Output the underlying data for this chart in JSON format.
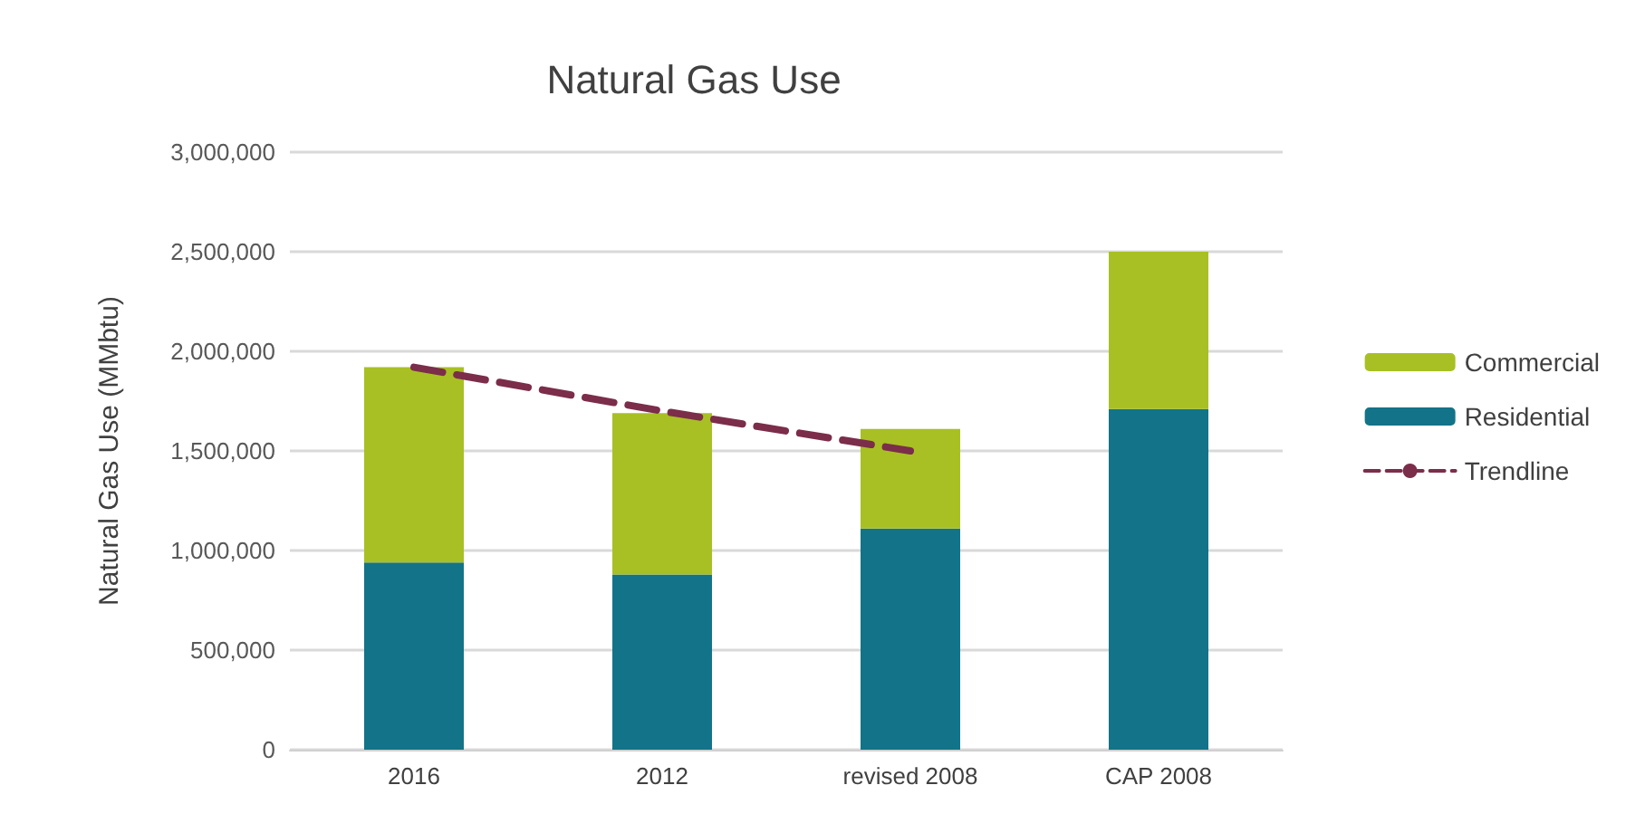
{
  "chart_data": {
    "type": "bar",
    "title": "Natural Gas Use",
    "ylabel": "Natural Gas Use (MMbtu)",
    "categories": [
      "2016",
      "2012",
      "revised 2008",
      "CAP 2008"
    ],
    "stacked": true,
    "series": [
      {
        "name": "Residential",
        "color": "#137388",
        "values": [
          940000,
          880000,
          1110000,
          1710000
        ]
      },
      {
        "name": "Commercial",
        "color": "#a8c023",
        "values": [
          980000,
          810000,
          500000,
          790000
        ]
      },
      {
        "name": "Trendline",
        "type": "line",
        "color": "#7b2d4a",
        "line_style": "dashed",
        "marker": "none",
        "values": [
          1920000,
          1700000,
          1500000,
          null
        ]
      }
    ],
    "ylim": [
      0,
      3000000
    ],
    "yticks": [
      0,
      {
        "value": 500000,
        "label": "500,000"
      },
      {
        "value": 1000000,
        "label": "1,000,000"
      },
      {
        "value": 1500000,
        "label": "1,500,000"
      },
      {
        "value": 2000000,
        "label": "2,000,000"
      },
      {
        "value": 2500000,
        "label": "2,500,000"
      },
      {
        "value": 3000000,
        "label": "3,000,000"
      }
    ],
    "grid": "y",
    "legend": "right"
  }
}
